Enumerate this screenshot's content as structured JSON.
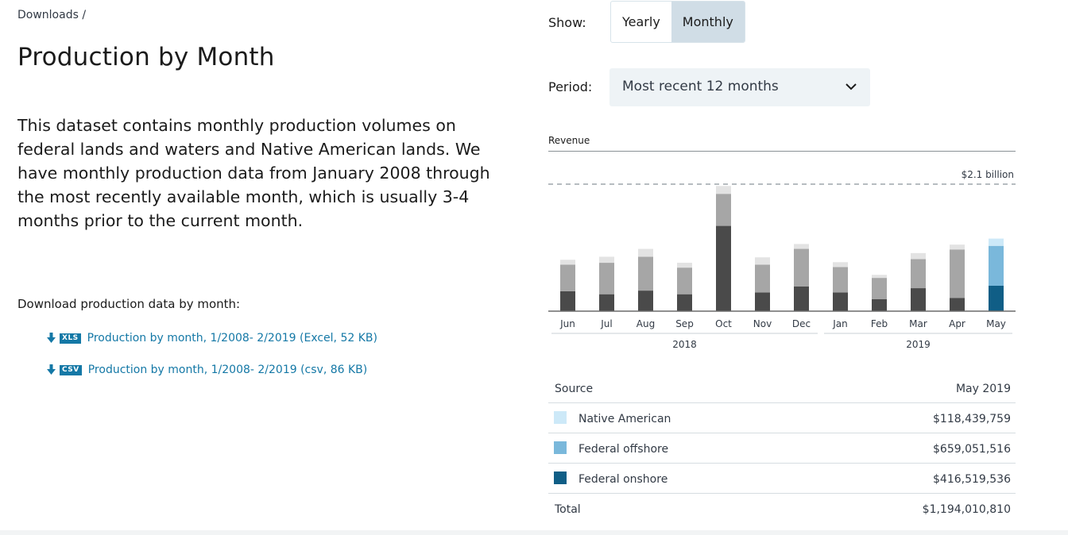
{
  "breadcrumb": "Downloads /",
  "title": "Production by Month",
  "description": "This dataset contains monthly production volumes on federal lands and waters and Native American lands. We have monthly production data from January 2008 through the most recently available month, which is usually 3-4 months prior to the current month.",
  "downloads": {
    "heading": "Download production data by month:",
    "links": [
      {
        "badge": "XLS",
        "label": "Production by month, 1/2008- 2/2019 (Excel, 52 KB)"
      },
      {
        "badge": "CSV",
        "label": "Production by month, 1/2008- 2/2019 (csv, 86 KB)"
      }
    ]
  },
  "controls": {
    "show_label": "Show:",
    "show_options": [
      "Yearly",
      "Monthly"
    ],
    "show_selected": "Monthly",
    "period_label": "Period:",
    "period_value": "Most recent 12 months"
  },
  "chart_data": {
    "type": "bar",
    "stacked": true,
    "title": "Revenue",
    "reference_line_label": "$2.1 billion",
    "categories": [
      "Jun",
      "Jul",
      "Aug",
      "Sep",
      "Oct",
      "Nov",
      "Dec",
      "Jan",
      "Feb",
      "Mar",
      "Apr",
      "May"
    ],
    "year_groups": [
      {
        "label": "2018",
        "months": 7
      },
      {
        "label": "2019",
        "months": 5
      }
    ],
    "highlight_index": 11,
    "series": [
      {
        "name": "Federal onshore",
        "values": [
          0.33,
          0.28,
          0.34,
          0.28,
          1.41,
          0.31,
          0.41,
          0.31,
          0.2,
          0.38,
          0.22,
          0.42
        ]
      },
      {
        "name": "Federal offshore",
        "values": [
          0.44,
          0.52,
          0.56,
          0.44,
          0.53,
          0.46,
          0.62,
          0.42,
          0.35,
          0.48,
          0.8,
          0.66
        ]
      },
      {
        "name": "Native American",
        "values": [
          0.08,
          0.1,
          0.13,
          0.08,
          0.13,
          0.12,
          0.08,
          0.08,
          0.05,
          0.1,
          0.08,
          0.12
        ]
      }
    ],
    "colors": {
      "default": [
        "#4a4a4a",
        "#a6a6a6",
        "#e3e3e3"
      ],
      "highlight": [
        "#105e86",
        "#7ab8db",
        "#cde9f8"
      ]
    },
    "ylim": [
      0,
      2.1
    ],
    "grid": false
  },
  "table": {
    "source_header": "Source",
    "period_header": "May 2019",
    "rows": [
      {
        "label": "Native American",
        "value": "$118,439,759",
        "color": "#cde9f8"
      },
      {
        "label": "Federal offshore",
        "value": "$659,051,516",
        "color": "#7ab8db"
      },
      {
        "label": "Federal onshore",
        "value": "$416,519,536",
        "color": "#105e86"
      }
    ],
    "total_label": "Total",
    "total_value": "$1,194,010,810"
  }
}
